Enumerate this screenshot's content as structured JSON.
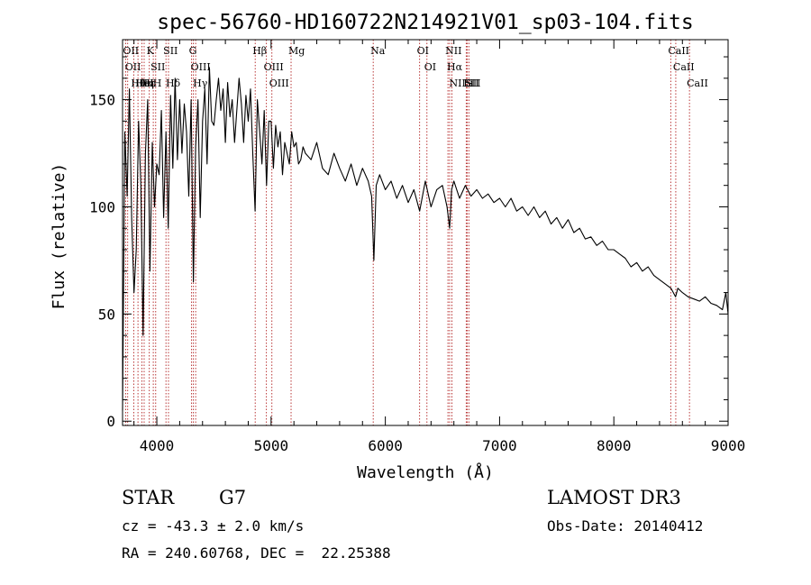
{
  "chart_data": {
    "type": "line",
    "title": "spec-56760-HD160722N214921V01_sp03-104.fits",
    "xlabel": "Wavelength (Å)",
    "ylabel": "Flux (relative)",
    "xlim": [
      3700,
      9000
    ],
    "ylim": [
      -2,
      178
    ],
    "xticks": [
      4000,
      5000,
      6000,
      7000,
      8000,
      9000
    ],
    "yticks": [
      0,
      50,
      100,
      150
    ],
    "grid": false,
    "series": [
      {
        "name": "flux",
        "color": "#000000",
        "x": [
          3700,
          3720,
          3740,
          3760,
          3780,
          3800,
          3820,
          3840,
          3860,
          3880,
          3900,
          3920,
          3940,
          3960,
          3980,
          4000,
          4020,
          4040,
          4060,
          4080,
          4100,
          4120,
          4140,
          4160,
          4180,
          4200,
          4220,
          4240,
          4260,
          4280,
          4300,
          4320,
          4340,
          4360,
          4380,
          4400,
          4420,
          4440,
          4460,
          4480,
          4500,
          4520,
          4540,
          4560,
          4580,
          4600,
          4620,
          4640,
          4660,
          4680,
          4700,
          4720,
          4740,
          4760,
          4780,
          4800,
          4820,
          4840,
          4860,
          4880,
          4900,
          4920,
          4940,
          4960,
          4980,
          5000,
          5020,
          5040,
          5060,
          5080,
          5100,
          5120,
          5140,
          5160,
          5180,
          5200,
          5220,
          5240,
          5260,
          5280,
          5300,
          5350,
          5400,
          5450,
          5500,
          5550,
          5600,
          5650,
          5700,
          5750,
          5800,
          5850,
          5880,
          5900,
          5920,
          5950,
          6000,
          6050,
          6100,
          6150,
          6200,
          6250,
          6300,
          6350,
          6400,
          6450,
          6500,
          6540,
          6563,
          6580,
          6600,
          6650,
          6700,
          6750,
          6800,
          6850,
          6900,
          6950,
          7000,
          7050,
          7100,
          7150,
          7200,
          7250,
          7300,
          7350,
          7400,
          7450,
          7500,
          7550,
          7600,
          7650,
          7700,
          7750,
          7800,
          7850,
          7900,
          7950,
          8000,
          8050,
          8100,
          8150,
          8200,
          8250,
          8300,
          8350,
          8400,
          8450,
          8500,
          8540,
          8560,
          8600,
          8650,
          8700,
          8750,
          8800,
          8850,
          8900,
          8950,
          8980,
          9000
        ],
        "values": [
          5,
          135,
          105,
          155,
          95,
          60,
          80,
          140,
          110,
          40,
          125,
          150,
          70,
          130,
          100,
          120,
          115,
          145,
          95,
          135,
          90,
          152,
          118,
          160,
          122,
          150,
          125,
          148,
          135,
          105,
          150,
          65,
          128,
          150,
          95,
          140,
          155,
          120,
          165,
          140,
          138,
          150,
          160,
          145,
          155,
          130,
          158,
          142,
          150,
          130,
          145,
          160,
          148,
          130,
          152,
          140,
          155,
          125,
          98,
          150,
          135,
          120,
          145,
          110,
          140,
          140,
          118,
          138,
          128,
          135,
          115,
          130,
          125,
          120,
          135,
          128,
          130,
          120,
          122,
          128,
          125,
          122,
          130,
          118,
          115,
          125,
          118,
          112,
          120,
          110,
          118,
          112,
          105,
          75,
          110,
          115,
          108,
          112,
          104,
          110,
          102,
          108,
          98,
          112,
          100,
          108,
          110,
          100,
          90,
          108,
          112,
          104,
          110,
          105,
          108,
          104,
          106,
          102,
          104,
          100,
          104,
          98,
          100,
          96,
          100,
          95,
          98,
          92,
          95,
          90,
          94,
          88,
          90,
          85,
          86,
          82,
          84,
          80,
          80,
          78,
          76,
          72,
          74,
          70,
          72,
          68,
          66,
          64,
          62,
          58,
          62,
          60,
          58,
          57,
          56,
          58,
          55,
          54,
          52,
          60,
          50
        ]
      }
    ],
    "lines": [
      {
        "label": "Hθ",
        "x": 3798
      },
      {
        "label": "OII",
        "x": 3727
      },
      {
        "label": "OII",
        "x": 3745
      },
      {
        "label": "Hε",
        "x": 3889
      },
      {
        "label": "HeI",
        "x": 3835
      },
      {
        "label": "Hη",
        "x": 3870
      },
      {
        "label": "K",
        "x": 3934
      },
      {
        "label": "SII",
        "x": 3969
      },
      {
        "label": "H",
        "x": 3990
      },
      {
        "label": "Hδ",
        "x": 4102
      },
      {
        "label": "SII",
        "x": 4080
      },
      {
        "label": "OIII",
        "x": 4320
      },
      {
        "label": "Hγ",
        "x": 4340
      },
      {
        "label": "G",
        "x": 4304
      },
      {
        "label": "Hβ",
        "x": 4861
      },
      {
        "label": "OIII",
        "x": 4959
      },
      {
        "label": "OIII",
        "x": 5007
      },
      {
        "label": "Mg",
        "x": 5175
      },
      {
        "label": "Na",
        "x": 5894
      },
      {
        "label": "OI",
        "x": 6300
      },
      {
        "label": "OI",
        "x": 6364
      },
      {
        "label": "Hα",
        "x": 6563
      },
      {
        "label": "NII",
        "x": 6548
      },
      {
        "label": "NII",
        "x": 6583
      },
      {
        "label": "SII",
        "x": 6716
      },
      {
        "label": "Li",
        "x": 6708
      },
      {
        "label": "SII",
        "x": 6731
      },
      {
        "label": "CaII",
        "x": 8498
      },
      {
        "label": "CaII",
        "x": 8542
      },
      {
        "label": "CaII",
        "x": 8662
      }
    ],
    "annotations": [
      "STAR",
      "G7",
      "LAMOST DR3",
      "cz = -43.3 ± 2.0 km/s",
      "Obs-Date: 20140412",
      "RA = 240.60768, DEC =  22.25388"
    ]
  },
  "info": {
    "object_class": "STAR",
    "subclass": "G7",
    "survey": "LAMOST DR3",
    "cz": "cz = -43.3 ± 2.0 km/s",
    "obs_date": "Obs-Date: 20140412",
    "coords": "RA = 240.60768, DEC =  22.25388"
  }
}
